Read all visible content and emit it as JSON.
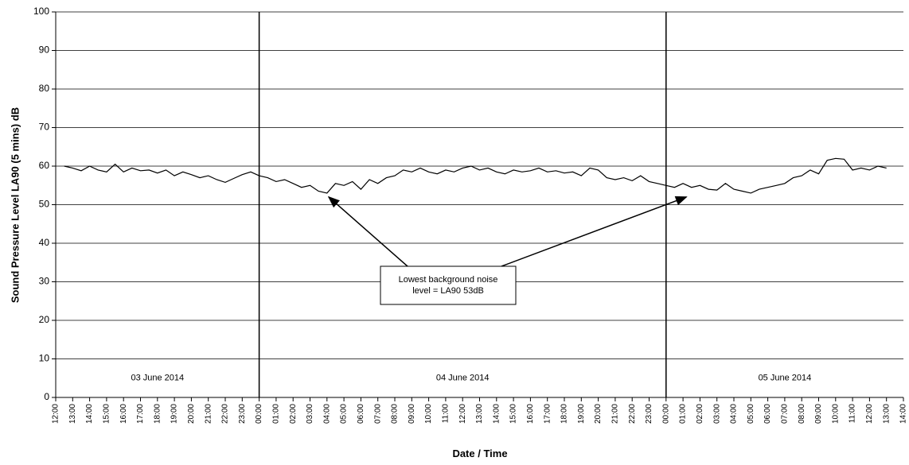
{
  "chart_data": {
    "type": "line",
    "y_label": "Sound Pressure Level LA90 (5 mins) dB",
    "x_label": "Date / Time",
    "color": "#000000",
    "grid": true,
    "ylim": [
      0,
      100
    ],
    "yticks": [
      0,
      10,
      20,
      30,
      40,
      50,
      60,
      70,
      80,
      90,
      100
    ],
    "xlim": [
      0,
      50
    ],
    "xticks": [
      {
        "value": 0,
        "label": "12:00"
      },
      {
        "value": 1,
        "label": "13:00"
      },
      {
        "value": 2,
        "label": "14:00"
      },
      {
        "value": 3,
        "label": "15:00"
      },
      {
        "value": 4,
        "label": "16:00"
      },
      {
        "value": 5,
        "label": "17:00"
      },
      {
        "value": 6,
        "label": "18:00"
      },
      {
        "value": 7,
        "label": "19:00"
      },
      {
        "value": 8,
        "label": "20:00"
      },
      {
        "value": 9,
        "label": "21:00"
      },
      {
        "value": 10,
        "label": "22:00"
      },
      {
        "value": 11,
        "label": "23:00"
      },
      {
        "value": 12,
        "label": "00:00"
      },
      {
        "value": 13,
        "label": "01:00"
      },
      {
        "value": 14,
        "label": "02:00"
      },
      {
        "value": 15,
        "label": "03:00"
      },
      {
        "value": 16,
        "label": "04:00"
      },
      {
        "value": 17,
        "label": "05:00"
      },
      {
        "value": 18,
        "label": "06:00"
      },
      {
        "value": 19,
        "label": "07:00"
      },
      {
        "value": 20,
        "label": "08:00"
      },
      {
        "value": 21,
        "label": "09:00"
      },
      {
        "value": 22,
        "label": "10:00"
      },
      {
        "value": 23,
        "label": "11:00"
      },
      {
        "value": 24,
        "label": "12:00"
      },
      {
        "value": 25,
        "label": "13:00"
      },
      {
        "value": 26,
        "label": "14:00"
      },
      {
        "value": 27,
        "label": "15:00"
      },
      {
        "value": 28,
        "label": "16:00"
      },
      {
        "value": 29,
        "label": "17:00"
      },
      {
        "value": 30,
        "label": "18:00"
      },
      {
        "value": 31,
        "label": "19:00"
      },
      {
        "value": 32,
        "label": "20:00"
      },
      {
        "value": 33,
        "label": "21:00"
      },
      {
        "value": 34,
        "label": "22:00"
      },
      {
        "value": 35,
        "label": "23:00"
      },
      {
        "value": 36,
        "label": "00:00"
      },
      {
        "value": 37,
        "label": "01:00"
      },
      {
        "value": 38,
        "label": "02:00"
      },
      {
        "value": 39,
        "label": "03:00"
      },
      {
        "value": 40,
        "label": "04:00"
      },
      {
        "value": 41,
        "label": "05:00"
      },
      {
        "value": 42,
        "label": "06:00"
      },
      {
        "value": 43,
        "label": "07:00"
      },
      {
        "value": 44,
        "label": "08:00"
      },
      {
        "value": 45,
        "label": "09:00"
      },
      {
        "value": 46,
        "label": "10:00"
      },
      {
        "value": 47,
        "label": "11:00"
      },
      {
        "value": 48,
        "label": "12:00"
      },
      {
        "value": 49,
        "label": "13:00"
      },
      {
        "value": 50,
        "label": "14:00"
      }
    ],
    "days": [
      {
        "label": "03 June 2014",
        "start": 0,
        "end": 12
      },
      {
        "label": "04 June 2014",
        "start": 12,
        "end": 36
      },
      {
        "label": "05 June 2014",
        "start": 36,
        "end": 50
      }
    ],
    "annotation": {
      "lines": [
        "Lowest background noise",
        "level = LA90 53dB"
      ],
      "points": [
        [
          16.1,
          52
        ],
        [
          37.2,
          52
        ]
      ]
    },
    "x": [
      0.5,
      1,
      1.5,
      2,
      2.5,
      3,
      3.5,
      4,
      4.5,
      5,
      5.5,
      6,
      6.5,
      7,
      7.5,
      8,
      8.5,
      9,
      9.5,
      10,
      10.5,
      11,
      11.5,
      12,
      12.5,
      13,
      13.5,
      14,
      14.5,
      15,
      15.5,
      16,
      16.5,
      17,
      17.5,
      18,
      18.5,
      19,
      19.5,
      20,
      20.5,
      21,
      21.5,
      22,
      22.5,
      23,
      23.5,
      24,
      24.5,
      25,
      25.5,
      26,
      26.5,
      27,
      27.5,
      28,
      28.5,
      29,
      29.5,
      30,
      30.5,
      31,
      31.5,
      32,
      32.5,
      33,
      33.5,
      34,
      34.5,
      35,
      35.5,
      36,
      36.5,
      37,
      37.5,
      38,
      38.5,
      39,
      39.5,
      40,
      40.5,
      41,
      41.5,
      42,
      42.5,
      43,
      43.5,
      44,
      44.5,
      45,
      45.5,
      46,
      46.5,
      47,
      47.5,
      48,
      48.5,
      49
    ],
    "values": [
      60,
      59.5,
      58.8,
      60,
      59,
      58.5,
      60.5,
      58.5,
      59.5,
      58.8,
      59,
      58.2,
      59,
      57.5,
      58.5,
      57.8,
      57,
      57.5,
      56.5,
      55.8,
      56.8,
      57.8,
      58.5,
      57.5,
      57,
      56,
      56.5,
      55.5,
      54.5,
      55,
      53.5,
      53,
      55.5,
      55,
      56,
      54,
      56.5,
      55.5,
      57,
      57.5,
      59,
      58.5,
      59.5,
      58.5,
      58,
      59,
      58.5,
      59.5,
      60,
      59,
      59.5,
      58.5,
      58,
      59,
      58.5,
      58.8,
      59.5,
      58.5,
      58.8,
      58.2,
      58.5,
      57.5,
      59.5,
      59,
      57,
      56.5,
      57,
      56.2,
      57.5,
      56,
      55.5,
      55,
      54.5,
      55.5,
      54.5,
      55,
      54,
      53.8,
      55.5,
      54,
      53.5,
      53,
      54,
      54.5,
      55,
      55.5,
      57,
      57.5,
      59,
      58,
      61.5,
      62,
      61.8,
      59,
      59.5,
      59,
      60,
      59.5
    ]
  }
}
